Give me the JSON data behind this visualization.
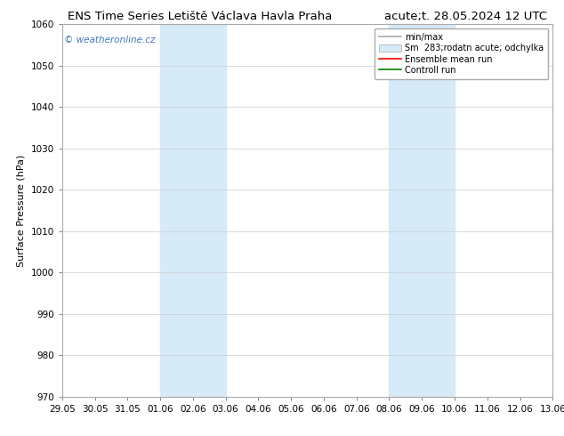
{
  "title_left": "ENS Time Series Letiště Václava Havla Praha",
  "title_right": "acute;t. 28.05.2024 12 UTC",
  "ylabel": "Surface Pressure (hPa)",
  "ylim": [
    970,
    1060
  ],
  "yticks": [
    970,
    980,
    990,
    1000,
    1010,
    1020,
    1030,
    1040,
    1050,
    1060
  ],
  "x_labels": [
    "29.05",
    "30.05",
    "31.05",
    "01.06",
    "02.06",
    "03.06",
    "04.06",
    "05.06",
    "06.06",
    "07.06",
    "08.06",
    "09.06",
    "10.06",
    "11.06",
    "12.06",
    "13.06"
  ],
  "x_positions": [
    0,
    1,
    2,
    3,
    4,
    5,
    6,
    7,
    8,
    9,
    10,
    11,
    12,
    13,
    14,
    15
  ],
  "shaded_regions": [
    {
      "xmin": 3,
      "xmax": 5,
      "color": "#d6eaf8"
    },
    {
      "xmin": 10,
      "xmax": 12,
      "color": "#d6eaf8"
    }
  ],
  "watermark_text": "© weatheronline.cz",
  "watermark_color": "#4477bb",
  "legend_entries": [
    {
      "label": "min/max",
      "color": "#aaaaaa",
      "style": "line",
      "linewidth": 1.2
    },
    {
      "label": "Sm  283;rodatn acute; odchylka",
      "color": "#d6eaf8",
      "style": "fill"
    },
    {
      "label": "Ensemble mean run",
      "color": "red",
      "style": "line",
      "linewidth": 1.2
    },
    {
      "label": "Controll run",
      "color": "green",
      "style": "line",
      "linewidth": 1.2
    }
  ],
  "bg_color": "#ffffff",
  "plot_bg_color": "#ffffff",
  "grid_color": "#cccccc",
  "title_fontsize": 9.5,
  "ylabel_fontsize": 8,
  "tick_fontsize": 7.5,
  "watermark_fontsize": 7.5,
  "legend_fontsize": 7
}
